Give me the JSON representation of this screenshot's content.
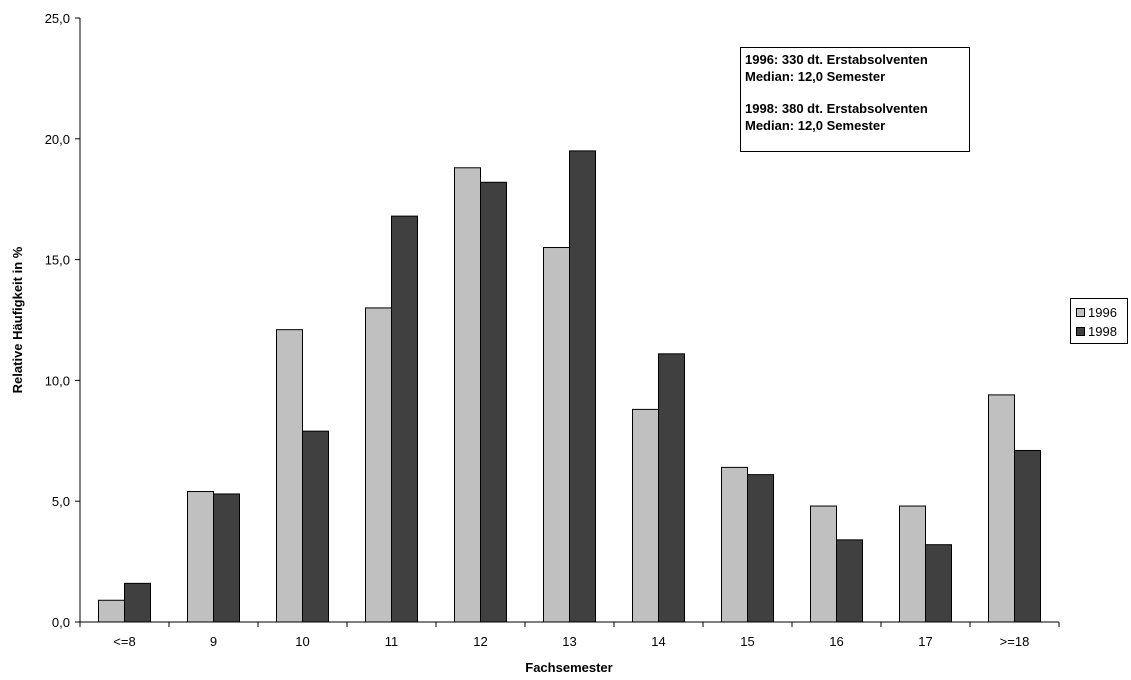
{
  "chart_data": {
    "type": "bar",
    "title": "",
    "xlabel": "Fachsemester",
    "ylabel": "Relative Häufigkeit in %",
    "ylim": [
      0,
      25
    ],
    "yticks": [
      "0,0",
      "5,0",
      "10,0",
      "15,0",
      "20,0",
      "25,0"
    ],
    "categories": [
      "<=8",
      "9",
      "10",
      "11",
      "12",
      "13",
      "14",
      "15",
      "16",
      "17",
      ">=18"
    ],
    "series": [
      {
        "name": "1996",
        "color": "#c0c0c0",
        "values": [
          0.9,
          5.4,
          12.1,
          13.0,
          18.8,
          15.5,
          8.8,
          6.4,
          4.8,
          4.8,
          9.4
        ]
      },
      {
        "name": "1998",
        "color": "#404040",
        "values": [
          1.6,
          5.3,
          7.9,
          16.8,
          18.2,
          19.5,
          11.1,
          6.1,
          3.4,
          3.2,
          7.1
        ]
      }
    ],
    "grid": false,
    "legend_position": "right",
    "annotation": [
      "1996: 330 dt. Erstabsolventen",
      "Median: 12,0 Semester",
      "1998: 380 dt. Erstabsolventen",
      "Median: 12,0 Semester"
    ]
  }
}
